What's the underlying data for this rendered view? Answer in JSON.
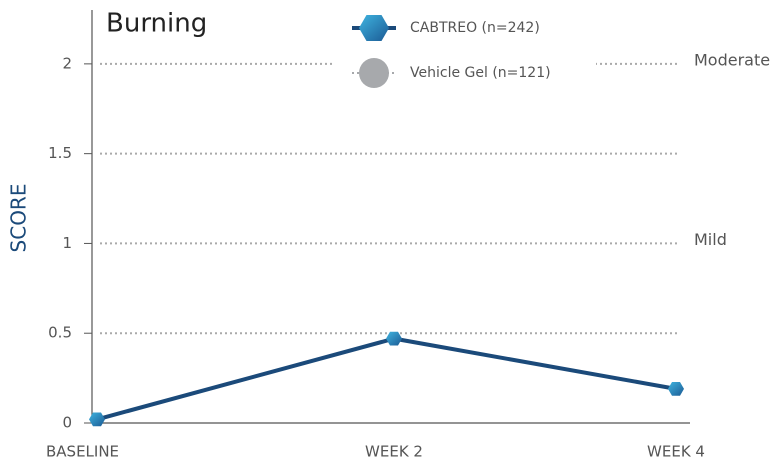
{
  "chart_data": {
    "type": "line",
    "title": "Burning",
    "y_label": "SCORE",
    "categories": [
      "BASELINE",
      "WEEK 2",
      "WEEK 4"
    ],
    "series": [
      {
        "name": "CABTREO (n=242)",
        "color": "#1b4a7a",
        "values": [
          0.02,
          0.47,
          0.19
        ]
      },
      {
        "name": "Vehicle Gel (n=121)",
        "color": "#a7a9ac",
        "values": [
          null,
          null,
          null
        ]
      }
    ],
    "ylim": [
      0,
      2.3
    ],
    "yticks": [
      0,
      0.5,
      1,
      1.5,
      2
    ],
    "grid": true,
    "annotations": [
      {
        "text": "Moderate",
        "y": 2
      },
      {
        "text": "Mild",
        "y": 1
      }
    ]
  }
}
